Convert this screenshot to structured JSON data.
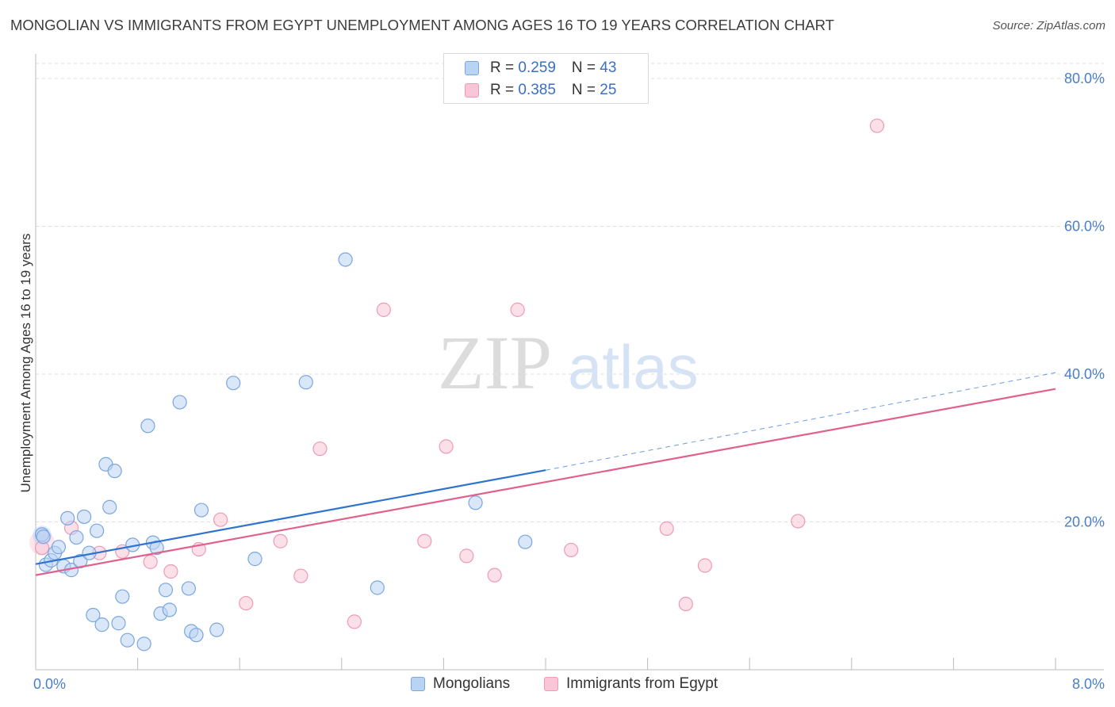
{
  "title": "MONGOLIAN VS IMMIGRANTS FROM EGYPT UNEMPLOYMENT AMONG AGES 16 TO 19 YEARS CORRELATION CHART",
  "source": "Source: ZipAtlas.com",
  "watermark": {
    "zip": "ZIP",
    "atlas": "atlas"
  },
  "legend": {
    "rows": [
      {
        "r_label": "R = ",
        "r_value": "0.259",
        "n_label": "N = ",
        "n_value": "43"
      },
      {
        "r_label": "R = ",
        "r_value": "0.385",
        "n_label": "N = ",
        "n_value": "25"
      }
    ]
  },
  "bottom_legend": [
    "Mongolians",
    "Immigrants from Egypt"
  ],
  "colors": {
    "mongolians_fill": "#b9d3f3",
    "mongolians_stroke": "#7aa6e0",
    "mongolians_line": "#2f73d0",
    "egypt_fill": "#f8c6d6",
    "egypt_stroke": "#ee9ab6",
    "egypt_line": "#e0608e",
    "tick": "#4a7fc8"
  },
  "chart_data": {
    "type": "scatter",
    "title": "MONGOLIAN VS IMMIGRANTS FROM EGYPT UNEMPLOYMENT AMONG AGES 16 TO 19 YEARS CORRELATION CHART",
    "xlabel": "",
    "ylabel": "Unemployment Among Ages 16 to 19 years",
    "xlim": [
      0,
      8
    ],
    "ylim": [
      0,
      80
    ],
    "x_tick_labels": [
      "0.0%",
      "8.0%"
    ],
    "y_ticks": [
      20,
      40,
      60,
      80
    ],
    "y_tick_labels": [
      "20.0%",
      "40.0%",
      "60.0%",
      "80.0%"
    ],
    "grid": true,
    "series": [
      {
        "name": "Mongolians",
        "r": 0.259,
        "n": 43,
        "points": [
          [
            0.05,
            18.3
          ],
          [
            0.06,
            18.0
          ],
          [
            0.08,
            14.2
          ],
          [
            0.12,
            14.8
          ],
          [
            0.15,
            15.8
          ],
          [
            0.18,
            16.6
          ],
          [
            0.22,
            14.0
          ],
          [
            0.25,
            20.5
          ],
          [
            0.28,
            13.5
          ],
          [
            0.32,
            17.9
          ],
          [
            0.35,
            14.7
          ],
          [
            0.38,
            20.7
          ],
          [
            0.42,
            15.8
          ],
          [
            0.45,
            7.4
          ],
          [
            0.48,
            18.8
          ],
          [
            0.52,
            6.1
          ],
          [
            0.55,
            27.8
          ],
          [
            0.58,
            22.0
          ],
          [
            0.62,
            26.9
          ],
          [
            0.65,
            6.3
          ],
          [
            0.68,
            9.9
          ],
          [
            0.72,
            4.0
          ],
          [
            0.76,
            16.9
          ],
          [
            0.85,
            3.5
          ],
          [
            0.88,
            33.0
          ],
          [
            0.92,
            17.2
          ],
          [
            0.95,
            16.5
          ],
          [
            0.98,
            7.6
          ],
          [
            1.02,
            10.8
          ],
          [
            1.05,
            8.1
          ],
          [
            1.13,
            36.2
          ],
          [
            1.2,
            11.0
          ],
          [
            1.22,
            5.2
          ],
          [
            1.26,
            4.7
          ],
          [
            1.3,
            21.6
          ],
          [
            1.42,
            5.4
          ],
          [
            1.55,
            38.8
          ],
          [
            1.72,
            15.0
          ],
          [
            2.12,
            38.9
          ],
          [
            2.43,
            55.5
          ],
          [
            2.68,
            11.1
          ],
          [
            3.45,
            22.6
          ],
          [
            3.84,
            17.3
          ]
        ],
        "trend": {
          "x": [
            0,
            4.0
          ],
          "y": [
            14.3,
            27.0
          ],
          "dashed_extension": {
            "x": [
              4.0,
              8.0
            ],
            "y": [
              27.0,
              40.2
            ]
          }
        }
      },
      {
        "name": "Immigrants from Egypt",
        "r": 0.385,
        "n": 25,
        "points": [
          [
            0.05,
            16.5
          ],
          [
            0.28,
            19.2
          ],
          [
            0.5,
            15.8
          ],
          [
            0.68,
            16.0
          ],
          [
            0.9,
            14.6
          ],
          [
            1.06,
            13.3
          ],
          [
            1.28,
            16.3
          ],
          [
            1.45,
            20.3
          ],
          [
            1.65,
            9.0
          ],
          [
            1.92,
            17.4
          ],
          [
            2.08,
            12.7
          ],
          [
            2.23,
            29.9
          ],
          [
            2.5,
            6.5
          ],
          [
            2.73,
            48.7
          ],
          [
            3.05,
            17.4
          ],
          [
            3.22,
            30.2
          ],
          [
            3.38,
            15.4
          ],
          [
            3.6,
            12.8
          ],
          [
            3.78,
            48.7
          ],
          [
            4.2,
            16.2
          ],
          [
            4.95,
            19.1
          ],
          [
            5.1,
            8.9
          ],
          [
            5.25,
            14.1
          ],
          [
            5.98,
            20.1
          ],
          [
            6.6,
            73.6
          ]
        ],
        "trend": {
          "x": [
            0,
            8.0
          ],
          "y": [
            12.8,
            38.0
          ]
        }
      }
    ]
  }
}
